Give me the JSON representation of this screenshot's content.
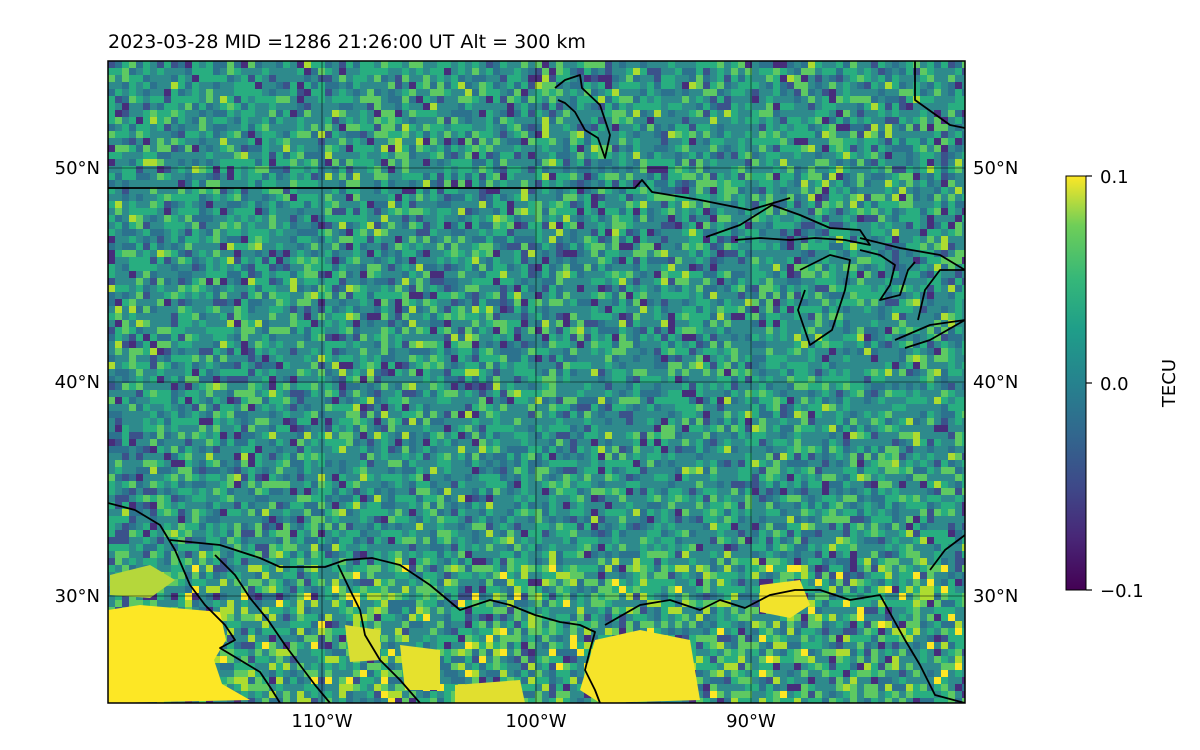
{
  "title": "2023-03-28  MID =1286    21:26:00  UT  Alt = 300 km",
  "map": {
    "lat_ticks": [
      "50°N",
      "40°N",
      "30°N"
    ],
    "lon_ticks": [
      "110°W",
      "100°W",
      "90°W"
    ],
    "lon_range": [
      -120,
      -80
    ],
    "lat_range": [
      25,
      55
    ],
    "gridlines": true
  },
  "colorbar": {
    "label": "TECU",
    "ticks": [
      "0.1",
      "0.0",
      "−0.1"
    ],
    "range": [
      -0.1,
      0.1
    ],
    "colormap": "viridis"
  },
  "chart_data": {
    "type": "heatmap",
    "title": "2023-03-28  MID =1286    21:26:00  UT  Alt = 300 km",
    "x_axis": "longitude",
    "y_axis": "latitude",
    "xlim": [
      -120,
      -80
    ],
    "ylim": [
      25,
      55
    ],
    "zlim": [
      -0.1,
      0.1
    ],
    "units": "TECU",
    "features": [
      {
        "region": "southwest corner (west of 115°W, south of 29°N)",
        "value": 0.1
      },
      {
        "region": "Gulf coast band (near 25–29°N, 105–90°W)",
        "value": 0.1
      },
      {
        "region": "scattered minima near 30–32°N, 104–95°W",
        "value": -0.1
      },
      {
        "region": "background over continent",
        "value": 0.0
      }
    ]
  }
}
